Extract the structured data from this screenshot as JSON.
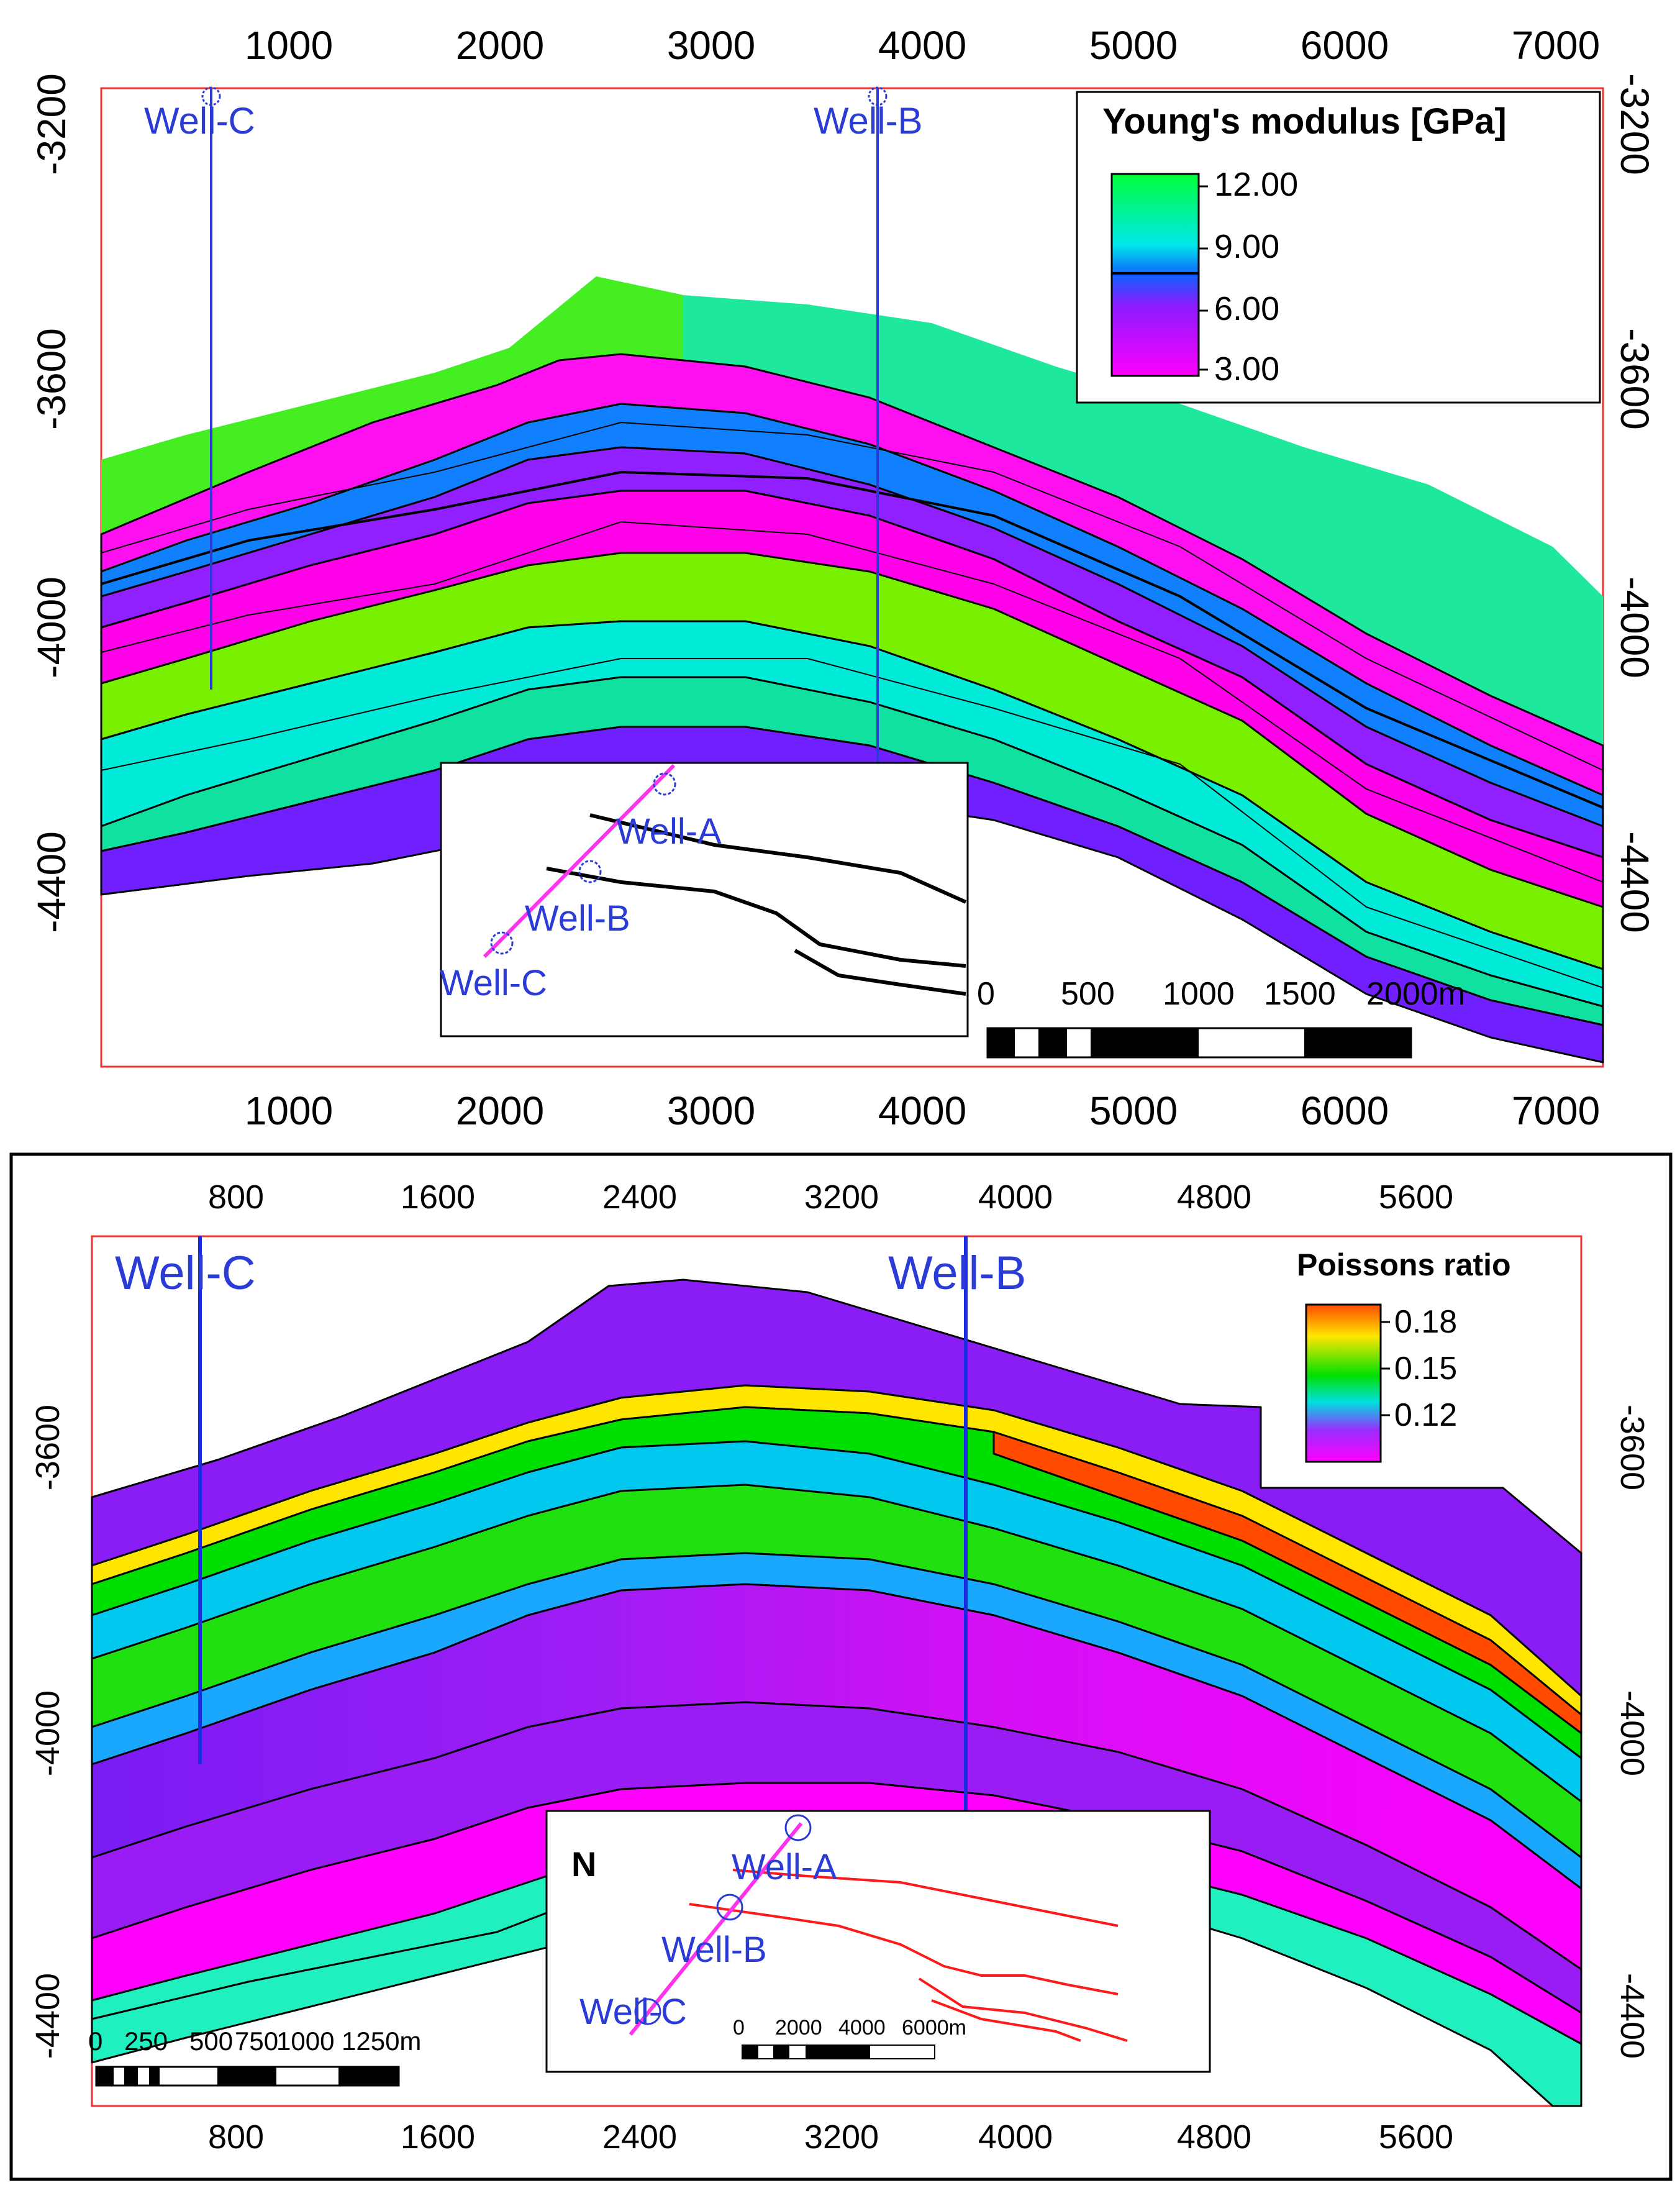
{
  "top_panel": {
    "legend": {
      "title": "Young's modulus [GPa]",
      "labels": [
        "12.00",
        "9.00",
        "6.00",
        "3.00"
      ],
      "colors": [
        "#00ff3a",
        "#00e8e8",
        "#1060ff",
        "#8a1cff",
        "#ff00ff"
      ]
    },
    "x_ticks": [
      "1000",
      "2000",
      "3000",
      "4000",
      "5000",
      "6000",
      "7000"
    ],
    "y_ticks": [
      "-3200",
      "-3600",
      "-4000",
      "-4400"
    ],
    "wells": {
      "c": "Well-C",
      "b": "Well-B"
    },
    "inset": {
      "well_a": "Well-A",
      "well_b": "Well-B",
      "well_c": "Well-C"
    },
    "scale_bar": {
      "labels": [
        "0",
        "500",
        "1000",
        "1500",
        "2000m"
      ]
    }
  },
  "bottom_panel": {
    "legend": {
      "title": "Poissons ratio",
      "labels": [
        "0.18",
        "0.15",
        "0.12"
      ],
      "colors": [
        "#ff4a00",
        "#ffe600",
        "#00e000",
        "#00e0e0",
        "#9a2cff",
        "#ff00ff"
      ]
    },
    "x_ticks": [
      "800",
      "1600",
      "2400",
      "3200",
      "4000",
      "4800",
      "5600"
    ],
    "y_ticks": [
      "-3600",
      "-4000",
      "-4400"
    ],
    "wells": {
      "c": "Well-C",
      "b": "Well-B"
    },
    "inset": {
      "north": "N",
      "well_a": "Well-A",
      "well_b": "Well-B",
      "well_c": "Well-C"
    },
    "inset_scale": {
      "labels": [
        "0",
        "2000",
        "4000",
        "6000m"
      ]
    },
    "scale_bar": {
      "labels": [
        "0",
        "250",
        "500",
        "750",
        "1000",
        "1250m"
      ]
    }
  }
}
